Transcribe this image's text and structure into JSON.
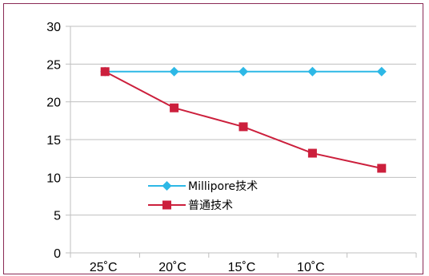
{
  "chart_data": {
    "type": "line",
    "categories": [
      "25˚C",
      "20˚C",
      "15˚C",
      "10˚C",
      ""
    ],
    "ylim": [
      0,
      30
    ],
    "yticks": [
      0,
      5,
      10,
      15,
      20,
      25,
      30
    ],
    "grid": true,
    "legend_position": "center-left",
    "series": [
      {
        "name": "Millipore技术",
        "color": "#2db8e6",
        "marker": "diamond",
        "values": [
          24,
          24,
          24,
          24,
          24
        ]
      },
      {
        "name": "普通技术",
        "color": "#cc1f3c",
        "marker": "square",
        "values": [
          24,
          19.2,
          16.7,
          13.2,
          11.2
        ]
      }
    ]
  }
}
